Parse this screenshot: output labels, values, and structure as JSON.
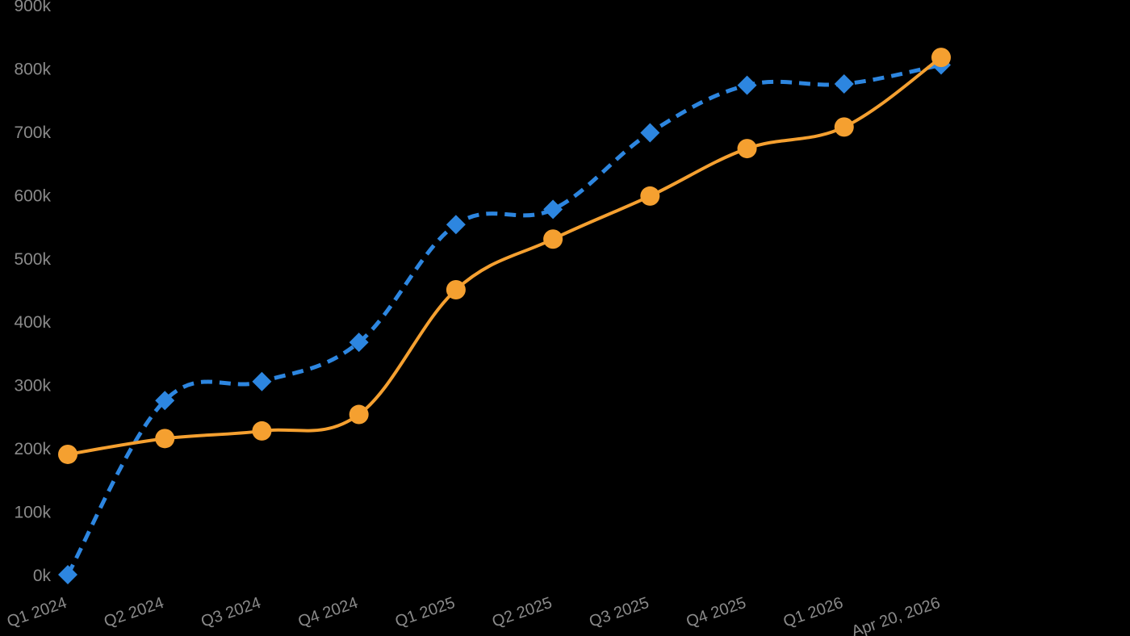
{
  "chart_data": {
    "type": "line",
    "categories": [
      "Q1 2024",
      "Q2 2024",
      "Q3 2024",
      "Q4 2024",
      "Q1 2025",
      "Q2 2025",
      "Q3 2025",
      "Q4 2025",
      "Q1 2026",
      "Apr 20, 2026"
    ],
    "y_ticks": [
      "0k",
      "100k",
      "200k",
      "300k",
      "400k",
      "500k",
      "600k",
      "700k",
      "800k",
      "900k"
    ],
    "ylim": [
      0,
      900000
    ],
    "grid": false,
    "series": [
      {
        "color": "#f5a030",
        "line_style": "solid",
        "marker": "circle",
        "values": [
          190000,
          215000,
          227000,
          253000,
          450000,
          530000,
          598000,
          673000,
          707000,
          817000
        ]
      },
      {
        "color": "#2d86e0",
        "line_style": "dashed",
        "marker": "diamond",
        "values": [
          0,
          275000,
          305000,
          367000,
          553000,
          577000,
          698000,
          773000,
          775000,
          805000
        ]
      }
    ]
  }
}
